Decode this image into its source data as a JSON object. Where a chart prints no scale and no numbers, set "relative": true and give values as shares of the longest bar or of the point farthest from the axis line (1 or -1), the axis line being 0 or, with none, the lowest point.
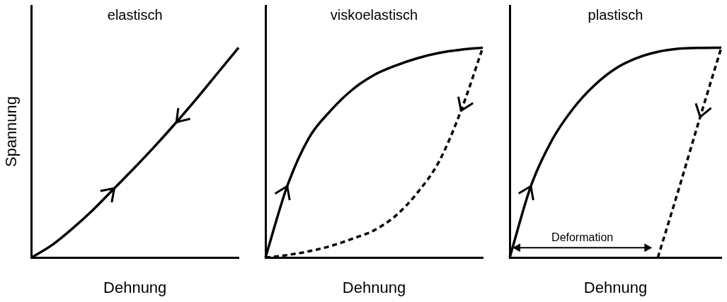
{
  "chart_data": [
    {
      "type": "line",
      "title": "elastisch",
      "xlabel": "Dehnung",
      "ylabel": "Spannung",
      "relative": true,
      "marker": "none",
      "categories": [
        null,
        null,
        null,
        null,
        null,
        null,
        null,
        null,
        null,
        null,
        null
      ],
      "series": [
        {
          "color": "#000000",
          "line_style": "solid",
          "values": [
            0,
            0.06,
            0.14,
            0.23,
            0.33,
            0.43,
            0.535,
            0.645,
            0.76,
            0.88,
            1
          ]
        }
      ]
    },
    {
      "type": "line",
      "title": "viskoelastisch",
      "xlabel": "Dehnung",
      "relative": true,
      "marker": "none",
      "categories": [
        null,
        null,
        null,
        null,
        null,
        null,
        null,
        null,
        null,
        null,
        null
      ],
      "series": [
        {
          "color": "#000000",
          "line_style": "solid",
          "values": [
            0,
            0.34,
            0.57,
            0.7,
            0.8,
            0.87,
            0.915,
            0.95,
            0.975,
            0.99,
            1
          ]
        },
        {
          "color": "#000000",
          "line_style": "dashed",
          "values": [
            0,
            0.012,
            0.03,
            0.055,
            0.09,
            0.13,
            0.2,
            0.31,
            0.46,
            0.7,
            1
          ]
        }
      ]
    },
    {
      "type": "line",
      "title": "plastisch",
      "xlabel": "Dehnung",
      "relative": true,
      "marker": "none",
      "annotations": [
        "Deformation"
      ],
      "categories": [
        null,
        null,
        null,
        null,
        null,
        null,
        null,
        null,
        null,
        null,
        null
      ],
      "series": [
        {
          "color": "#000000",
          "line_style": "solid",
          "values": [
            0,
            0.34,
            0.56,
            0.71,
            0.82,
            0.9,
            0.95,
            0.98,
            0.995,
            0.999,
            1
          ]
        },
        {
          "color": "#000000",
          "line_style": "dashed",
          "values": [
            null,
            null,
            null,
            null,
            null,
            null,
            null,
            0,
            0.33,
            0.67,
            1
          ]
        }
      ]
    }
  ]
}
